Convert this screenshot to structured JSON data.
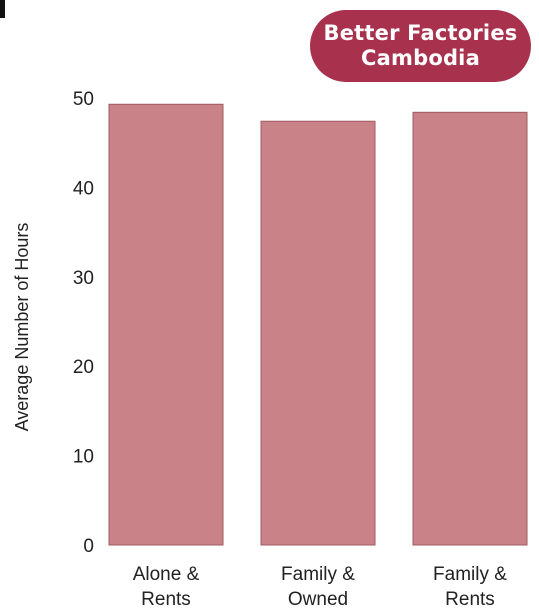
{
  "badge": {
    "line1": "Better Factories",
    "line2": "Cambodia",
    "color": "#a8324e"
  },
  "chart_data": {
    "type": "bar",
    "categories": [
      [
        "Alone &",
        "Rents"
      ],
      [
        "Family &",
        "Owned"
      ],
      [
        "Family &",
        "Rents"
      ]
    ],
    "values": [
      49.3,
      47.4,
      48.4
    ],
    "ylabel": "Average Number of Hours",
    "ylim": [
      0,
      50
    ],
    "yticks": [
      0,
      10,
      20,
      30,
      40,
      50
    ],
    "bar_color": "#c98287",
    "bar_edge_color": "#9e5a62",
    "grid": false,
    "legend": "none"
  }
}
